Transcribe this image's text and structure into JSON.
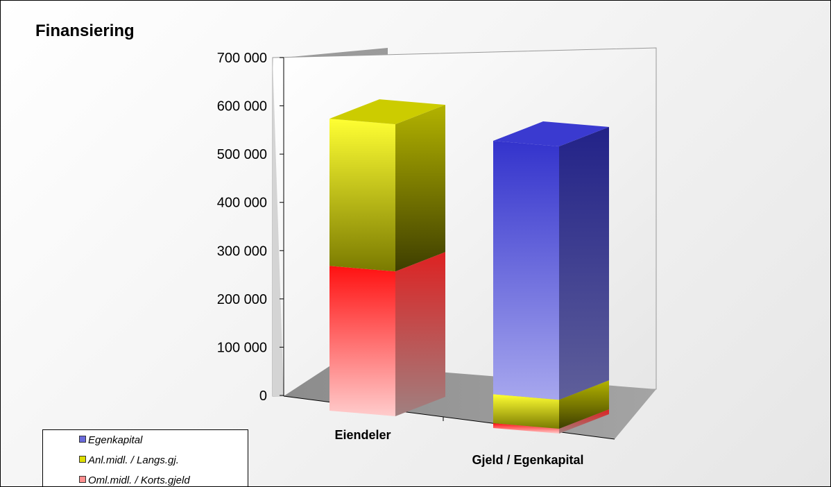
{
  "chart_data": {
    "type": "bar",
    "stacked": true,
    "three_d": true,
    "title": "Finansiering",
    "categories": [
      "Eiendeler",
      "Gjeld / Egenkapital"
    ],
    "series": [
      {
        "name": "Oml.midl. / Korts.gjeld",
        "values": [
          300000,
          10000
        ],
        "color": "#ff3333"
      },
      {
        "name": "Anl.midl. / Langs.gj.",
        "values": [
          305000,
          60000
        ],
        "color": "#eeee00"
      },
      {
        "name": "Egenkapital",
        "values": [
          0,
          525000
        ],
        "color": "#4444dd"
      }
    ],
    "ylim": [
      0,
      700000
    ],
    "yticks": [
      "0",
      "100 000",
      "200 000",
      "300 000",
      "400 000",
      "500 000",
      "600 000",
      "700 000"
    ],
    "legend_position": "bottom-left",
    "grid": false
  },
  "legend": {
    "items": [
      {
        "label": "Egenkapital",
        "color": "#6b6bdc"
      },
      {
        "label": "Anl.midl. / Langs.gj.",
        "color": "#dddd00"
      },
      {
        "label": "Oml.midl. / Korts.gjeld",
        "color": "#ff8f8f"
      }
    ]
  }
}
